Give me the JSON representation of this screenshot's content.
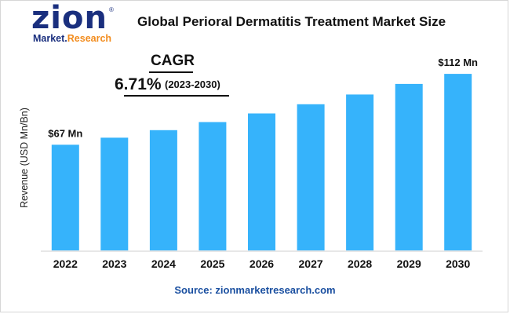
{
  "header": {
    "title": "Global Perioral Dermatitis Treatment Market Size"
  },
  "logo": {
    "word": "zion",
    "sub_main": "Market.",
    "sub_accent": "Research",
    "reg": "®"
  },
  "cagr": {
    "label": "CAGR",
    "value": "6.71%",
    "period": "(2023-2030)"
  },
  "source": {
    "label": "Source:",
    "value": "zionmarketresearch.com"
  },
  "colors": {
    "bar": "#36b3fb",
    "brand": "#1a2f7e",
    "accent": "#f28c1e"
  },
  "chart_data": {
    "type": "bar",
    "title": "Global Perioral Dermatitis Treatment Market Size",
    "ylabel": "Revenue (USD Mn/Bn)",
    "xlabel": "",
    "categories": [
      "2022",
      "2023",
      "2024",
      "2025",
      "2026",
      "2027",
      "2028",
      "2029",
      "2030"
    ],
    "values": [
      67,
      71.5,
      76.3,
      81.4,
      86.9,
      92.7,
      98.9,
      105.6,
      112
    ],
    "ylim": [
      0,
      118
    ],
    "data_labels": [
      {
        "category": "2022",
        "text": "$67 Mn"
      },
      {
        "category": "2030",
        "text": "$112 Mn"
      }
    ],
    "grid": false,
    "legend": "none"
  }
}
